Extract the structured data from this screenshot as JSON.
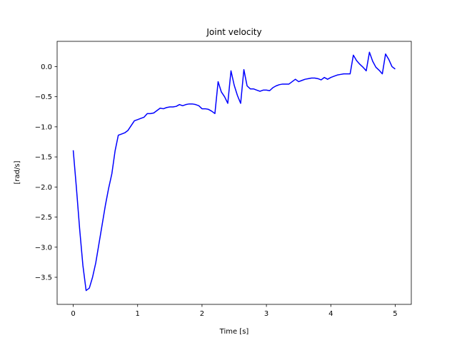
{
  "chart_data": {
    "type": "line",
    "title": "Joint velocity",
    "xlabel": "Time [s]",
    "ylabel": "[rad/s]",
    "xlim": [
      -0.25,
      5.25
    ],
    "ylim": [
      -3.95,
      0.42
    ],
    "xticks": [
      0,
      1,
      2,
      3,
      4,
      5
    ],
    "xtick_labels": [
      "0",
      "1",
      "2",
      "3",
      "4",
      "5"
    ],
    "yticks": [
      -3.5,
      -3.0,
      -2.5,
      -2.0,
      -1.5,
      -1.0,
      -0.5,
      0.0
    ],
    "ytick_labels": [
      "−3.5",
      "−3.0",
      "−2.5",
      "−2.0",
      "−1.5",
      "−1.0",
      "−0.5",
      "0.0"
    ],
    "grid": false,
    "legend": "none",
    "series": [
      {
        "color": "#0000ff",
        "x": [
          0.0,
          0.05,
          0.1,
          0.15,
          0.2,
          0.25,
          0.3,
          0.35,
          0.4,
          0.45,
          0.5,
          0.55,
          0.6,
          0.65,
          0.7,
          0.75,
          0.8,
          0.85,
          0.9,
          0.95,
          1.0,
          1.05,
          1.1,
          1.15,
          1.2,
          1.25,
          1.3,
          1.35,
          1.4,
          1.45,
          1.5,
          1.55,
          1.6,
          1.65,
          1.7,
          1.75,
          1.8,
          1.85,
          1.9,
          1.95,
          2.0,
          2.05,
          2.1,
          2.15,
          2.2,
          2.25,
          2.3,
          2.35,
          2.4,
          2.45,
          2.5,
          2.55,
          2.6,
          2.65,
          2.7,
          2.75,
          2.8,
          2.85,
          2.9,
          2.95,
          3.0,
          3.05,
          3.1,
          3.15,
          3.2,
          3.25,
          3.3,
          3.35,
          3.4,
          3.45,
          3.5,
          3.55,
          3.6,
          3.65,
          3.7,
          3.75,
          3.8,
          3.85,
          3.9,
          3.95,
          4.0,
          4.05,
          4.1,
          4.15,
          4.2,
          4.25,
          4.3,
          4.35,
          4.4,
          4.45,
          4.5,
          4.55,
          4.6,
          4.65,
          4.7,
          4.75,
          4.8,
          4.85,
          4.9,
          4.95,
          5.0
        ],
        "values": [
          -1.39,
          -2.02,
          -2.7,
          -3.3,
          -3.72,
          -3.68,
          -3.5,
          -3.26,
          -2.94,
          -2.62,
          -2.3,
          -2.02,
          -1.78,
          -1.4,
          -1.14,
          -1.12,
          -1.1,
          -1.06,
          -0.98,
          -0.9,
          -0.88,
          -0.86,
          -0.84,
          -0.78,
          -0.78,
          -0.77,
          -0.73,
          -0.69,
          -0.7,
          -0.68,
          -0.67,
          -0.67,
          -0.66,
          -0.63,
          -0.65,
          -0.63,
          -0.62,
          -0.62,
          -0.63,
          -0.65,
          -0.7,
          -0.7,
          -0.71,
          -0.74,
          -0.78,
          -0.25,
          -0.42,
          -0.5,
          -0.61,
          -0.07,
          -0.31,
          -0.48,
          -0.61,
          -0.05,
          -0.32,
          -0.37,
          -0.37,
          -0.39,
          -0.41,
          -0.39,
          -0.39,
          -0.4,
          -0.35,
          -0.32,
          -0.3,
          -0.29,
          -0.29,
          -0.29,
          -0.25,
          -0.21,
          -0.25,
          -0.23,
          -0.21,
          -0.2,
          -0.19,
          -0.19,
          -0.2,
          -0.22,
          -0.18,
          -0.21,
          -0.18,
          -0.16,
          -0.14,
          -0.13,
          -0.12,
          -0.12,
          -0.12,
          0.19,
          0.1,
          0.04,
          -0.01,
          -0.07,
          0.24,
          0.09,
          -0.01,
          -0.06,
          -0.12,
          0.21,
          0.12,
          0.0,
          -0.04
        ]
      }
    ]
  }
}
